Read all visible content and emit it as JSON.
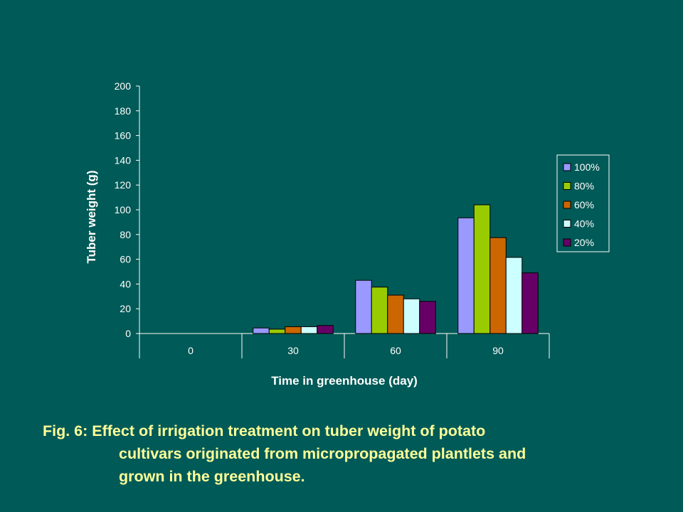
{
  "colors": {
    "background": "#005a57",
    "axis": "#ffffff",
    "caption": "#ffff99"
  },
  "chart_data": {
    "type": "bar",
    "title": "",
    "xlabel": "Time in greenhouse (day)",
    "ylabel": "Tuber weight (g)",
    "ylim": [
      0,
      200
    ],
    "yticks": [
      0,
      20,
      40,
      60,
      80,
      100,
      120,
      140,
      160,
      180,
      200
    ],
    "categories": [
      "0",
      "30",
      "60",
      "90"
    ],
    "legend_position": "right",
    "series": [
      {
        "name": "100%",
        "color": "#9999ff",
        "values": [
          0,
          4.5,
          43,
          93.5
        ]
      },
      {
        "name": "80%",
        "color": "#99cc00",
        "values": [
          0,
          3.5,
          37.5,
          104
        ]
      },
      {
        "name": "60%",
        "color": "#cc6600",
        "values": [
          0,
          5.5,
          31,
          77.5
        ]
      },
      {
        "name": "40%",
        "color": "#ccffff",
        "values": [
          0,
          5.5,
          28,
          61.5
        ]
      },
      {
        "name": "20%",
        "color": "#660066",
        "values": [
          0,
          6.5,
          26,
          49
        ]
      }
    ]
  },
  "caption": {
    "line1": "Fig. 6: Effect of irrigation treatment on tuber weight of potato",
    "line2": "cultivars originated from micropropagated plantlets and",
    "line3": "grown in the greenhouse."
  }
}
